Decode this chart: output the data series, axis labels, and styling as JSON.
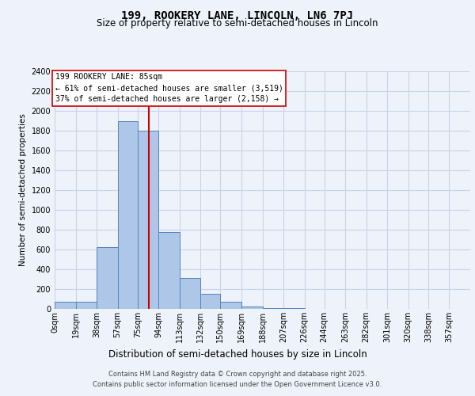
{
  "title": "199, ROOKERY LANE, LINCOLN, LN6 7PJ",
  "subtitle": "Size of property relative to semi-detached houses in Lincoln",
  "xlabel": "Distribution of semi-detached houses by size in Lincoln",
  "ylabel": "Number of semi-detached properties",
  "property_label": "199 ROOKERY LANE: 85sqm",
  "pct_smaller": "61% of semi-detached houses are smaller (3,519)",
  "pct_larger": "37% of semi-detached houses are larger (2,158)",
  "property_value": 85,
  "bin_edges": [
    0,
    19,
    38,
    57,
    75,
    94,
    113,
    132,
    150,
    169,
    188,
    207,
    226,
    244,
    263,
    282,
    301,
    320,
    338,
    357,
    376
  ],
  "bar_heights": [
    75,
    75,
    625,
    1900,
    1800,
    775,
    310,
    150,
    75,
    25,
    10,
    5,
    3,
    2,
    2,
    1,
    1,
    1,
    0,
    0
  ],
  "bar_color": "#aec6e8",
  "bar_edge_color": "#5585bb",
  "vline_color": "#cc0000",
  "vline_x": 85,
  "ylim": [
    0,
    2400
  ],
  "yticks": [
    0,
    200,
    400,
    600,
    800,
    1000,
    1200,
    1400,
    1600,
    1800,
    2000,
    2200,
    2400
  ],
  "grid_color": "#c8d4e8",
  "background_color": "#eef2fa",
  "annotation_bg": "#ffffff",
  "annotation_edge": "#cc0000",
  "title_fontsize": 10,
  "subtitle_fontsize": 8.5,
  "xlabel_fontsize": 8.5,
  "ylabel_fontsize": 7.5,
  "tick_fontsize": 7,
  "annot_fontsize": 7,
  "footer_line1": "Contains HM Land Registry data © Crown copyright and database right 2025.",
  "footer_line2": "Contains public sector information licensed under the Open Government Licence v3.0.",
  "footer_fontsize": 6
}
